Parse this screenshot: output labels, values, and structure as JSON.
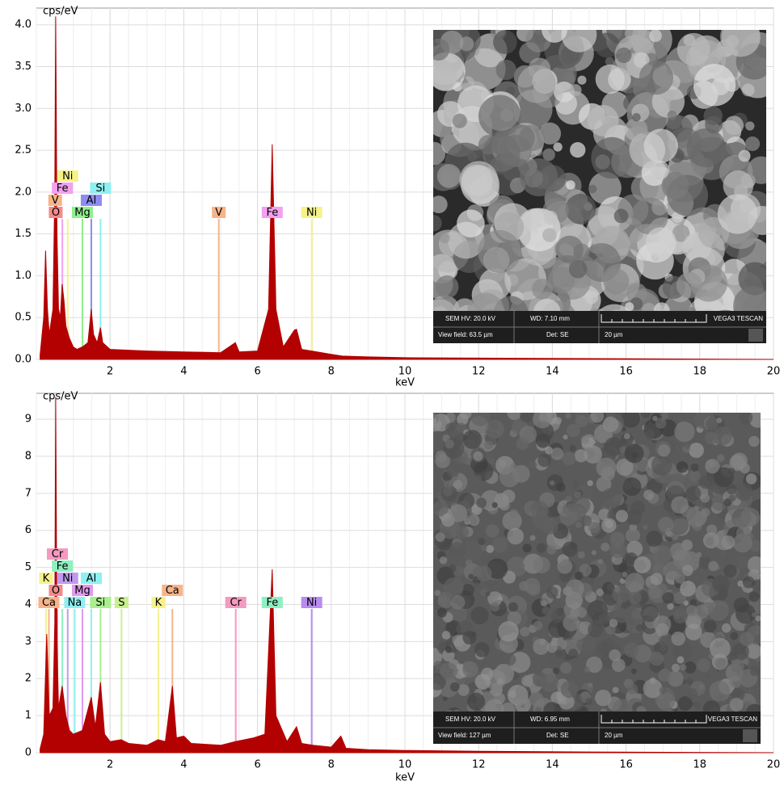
{
  "chart_data": [
    {
      "type": "area",
      "y_label": "cps/eV",
      "x_label": "keV",
      "color": "#b30000",
      "grid": true,
      "xlim": [
        0,
        20
      ],
      "ylim": [
        0,
        4.2
      ],
      "xticks": [
        2,
        4,
        6,
        8,
        10,
        12,
        14,
        16,
        18,
        20
      ],
      "yticks": [
        {
          "value": 0,
          "label": "0.0"
        },
        0.5,
        {
          "value": 1,
          "label": "1.0"
        },
        1.5,
        {
          "value": 2,
          "label": "2.0"
        },
        2.5,
        {
          "value": 3,
          "label": "3.0"
        },
        3.5,
        {
          "value": 4,
          "label": "4.0"
        }
      ],
      "x": [
        0.1,
        0.2,
        0.25,
        0.3,
        0.35,
        0.45,
        0.5,
        0.525,
        0.56,
        0.6,
        0.65,
        0.7,
        0.75,
        0.8,
        0.9,
        1.0,
        1.1,
        1.25,
        1.4,
        1.49,
        1.55,
        1.65,
        1.74,
        1.8,
        2.0,
        3,
        4,
        5,
        5.4,
        5.5,
        6.0,
        6.3,
        6.4,
        6.5,
        6.7,
        7.0,
        7.06,
        7.2,
        7.47,
        8,
        8.3,
        9,
        10,
        12,
        15,
        20
      ],
      "values": [
        0.05,
        0.5,
        1.3,
        0.6,
        0.3,
        0.6,
        2.0,
        4.1,
        1.5,
        0.6,
        0.5,
        0.9,
        0.7,
        0.4,
        0.25,
        0.15,
        0.12,
        0.15,
        0.2,
        0.6,
        0.3,
        0.2,
        0.38,
        0.2,
        0.12,
        0.1,
        0.09,
        0.08,
        0.2,
        0.09,
        0.1,
        0.6,
        2.57,
        0.6,
        0.15,
        0.35,
        0.36,
        0.12,
        0.1,
        0.06,
        0.04,
        0.03,
        0.02,
        0.015,
        0.01,
        0
      ],
      "markers": [
        {
          "label": "O",
          "energy": 0.525,
          "color": "#f28b8b"
        },
        {
          "label": "V",
          "energy": 0.51,
          "color": "#f7b48a"
        },
        {
          "label": "Fe",
          "energy": 0.705,
          "color": "#f4a0f0"
        },
        {
          "label": "Ni",
          "energy": 0.85,
          "color": "#f5f28a"
        },
        {
          "label": "Mg",
          "energy": 1.25,
          "color": "#8ef08e"
        },
        {
          "label": "Al",
          "energy": 1.49,
          "color": "#8c8cf0"
        },
        {
          "label": "Si",
          "energy": 1.74,
          "color": "#8ef0f0"
        },
        {
          "label": "V",
          "energy": 4.95,
          "color": "#f7b48a"
        },
        {
          "label": "Fe",
          "energy": 6.4,
          "color": "#f4a0f0"
        },
        {
          "label": "Ni",
          "energy": 7.47,
          "color": "#f5f28a"
        }
      ]
    },
    {
      "type": "area",
      "y_label": "cps/eV",
      "x_label": "keV",
      "color": "#b30000",
      "grid": true,
      "xlim": [
        0,
        20
      ],
      "ylim": [
        0,
        9.7
      ],
      "xticks": [
        2,
        4,
        6,
        8,
        10,
        12,
        14,
        16,
        18,
        20
      ],
      "yticks": [
        0,
        1,
        2,
        3,
        4,
        5,
        6,
        7,
        8,
        9
      ],
      "x": [
        0.1,
        0.2,
        0.28,
        0.35,
        0.45,
        0.5,
        0.525,
        0.56,
        0.6,
        0.7,
        0.8,
        0.9,
        1.0,
        1.25,
        1.49,
        1.6,
        1.74,
        1.85,
        2.0,
        2.3,
        2.5,
        3.0,
        3.3,
        3.5,
        3.69,
        3.8,
        4.0,
        4.2,
        5.0,
        5.4,
        5.9,
        6.2,
        6.4,
        6.5,
        6.8,
        7.06,
        7.2,
        7.5,
        8.0,
        8.26,
        8.4,
        9,
        10,
        12,
        15,
        20
      ],
      "values": [
        0.1,
        0.5,
        3.2,
        1.0,
        1.2,
        3.5,
        9.6,
        3.0,
        1.2,
        1.8,
        1.0,
        0.6,
        0.5,
        0.6,
        1.5,
        0.7,
        1.9,
        0.5,
        0.3,
        0.35,
        0.25,
        0.2,
        0.35,
        0.3,
        1.8,
        0.4,
        0.45,
        0.25,
        0.2,
        0.3,
        0.4,
        0.5,
        4.95,
        1.0,
        0.3,
        0.7,
        0.25,
        0.2,
        0.15,
        0.45,
        0.12,
        0.08,
        0.06,
        0.04,
        0.02,
        0
      ],
      "markers": [
        {
          "label": "Ca",
          "energy": 0.34,
          "color": "#f7b48a"
        },
        {
          "label": "O",
          "energy": 0.525,
          "color": "#f28b8b"
        },
        {
          "label": "K",
          "energy": 0.26,
          "color": "#f5f28a"
        },
        {
          "label": "Fe",
          "energy": 0.705,
          "color": "#8ef0c0"
        },
        {
          "label": "Cr",
          "energy": 0.57,
          "color": "#f49ac0"
        },
        {
          "label": "Ni",
          "energy": 0.85,
          "color": "#c09af0"
        },
        {
          "label": "Na",
          "energy": 1.04,
          "color": "#8ef0f0"
        },
        {
          "label": "Mg",
          "energy": 1.25,
          "color": "#e09af0"
        },
        {
          "label": "Al",
          "energy": 1.49,
          "color": "#8ef0f0"
        },
        {
          "label": "Si",
          "energy": 1.74,
          "color": "#a8f08e"
        },
        {
          "label": "S",
          "energy": 2.31,
          "color": "#c8f08e"
        },
        {
          "label": "K",
          "energy": 3.31,
          "color": "#f5f28a"
        },
        {
          "label": "Ca",
          "energy": 3.69,
          "color": "#f7b48a"
        },
        {
          "label": "Cr",
          "energy": 5.41,
          "color": "#f49ac0"
        },
        {
          "label": "Fe",
          "energy": 6.4,
          "color": "#8ef0c0"
        },
        {
          "label": "Ni",
          "energy": 7.47,
          "color": "#b98cf0"
        }
      ]
    }
  ],
  "images": [
    {
      "hv": "SEM HV: 20.0 kV",
      "wd": "WD: 7.10 mm",
      "brand": "VEGA3 TESCAN",
      "view_field": "View field: 63.5 µm",
      "det": "Det: SE",
      "scale": "20 µm"
    },
    {
      "hv": "SEM HV: 20.0 kV",
      "wd": "WD: 6.95 mm",
      "brand": "VEGA3 TESCAN",
      "view_field": "View field: 127 µm",
      "det": "Det: SE",
      "scale": "20 µm"
    }
  ]
}
